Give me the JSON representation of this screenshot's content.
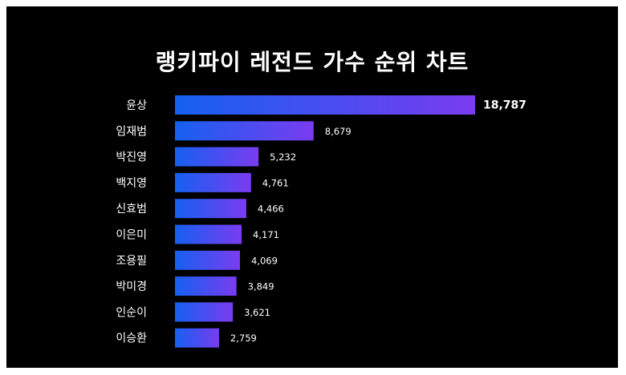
{
  "chart_data": {
    "type": "bar",
    "orientation": "horizontal",
    "title": "랭키파이 레전드 가수 순위 차트",
    "categories": [
      "윤상",
      "임재범",
      "박진영",
      "백지영",
      "신효범",
      "이은미",
      "조용필",
      "박미경",
      "인순이",
      "이승환"
    ],
    "values": [
      18787,
      8679,
      5232,
      4761,
      4466,
      4171,
      4069,
      3849,
      3621,
      2759
    ],
    "value_labels": [
      "18,787",
      "8,679",
      "5,232",
      "4,761",
      "4,466",
      "4,171",
      "4,069",
      "3,849",
      "3,621",
      "2,759"
    ],
    "xlim": [
      0,
      18787
    ],
    "grid": false,
    "colors": {
      "background": "#000000",
      "bar_gradient_start": "#1560f0",
      "bar_gradient_end": "#7a3cf0",
      "text": "#ffffff"
    }
  }
}
